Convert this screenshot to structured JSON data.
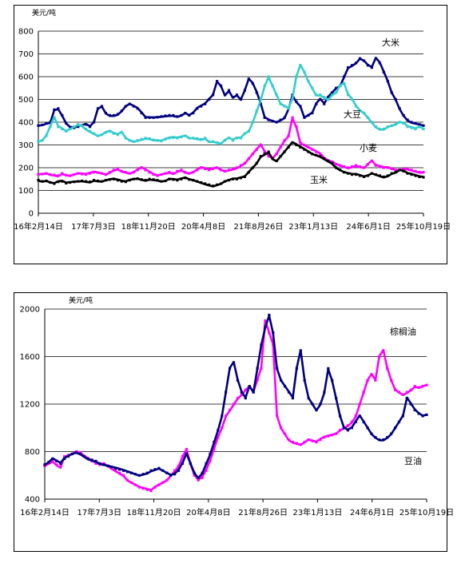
{
  "chart_data": [
    {
      "type": "line",
      "ylabel": "美元/吨",
      "ylim": [
        0,
        800
      ],
      "yticks": [
        0,
        100,
        200,
        300,
        400,
        500,
        600,
        700,
        800
      ],
      "xticks": [
        "16年2月14日",
        "17年7月3日",
        "18年11月20日",
        "20年4月8日",
        "21年8月26日",
        "23年1月13日",
        "24年6月1日",
        "25年10月19日"
      ],
      "grid": true,
      "series": [
        {
          "name": "大米",
          "color": "#000080",
          "values": [
            385,
            388,
            395,
            400,
            455,
            460,
            430,
            395,
            378,
            375,
            380,
            385,
            390,
            380,
            400,
            460,
            470,
            440,
            430,
            430,
            435,
            450,
            470,
            480,
            470,
            460,
            440,
            420,
            420,
            420,
            422,
            425,
            428,
            430,
            430,
            425,
            430,
            440,
            430,
            440,
            460,
            470,
            480,
            500,
            520,
            580,
            560,
            520,
            540,
            510,
            520,
            500,
            540,
            590,
            570,
            530,
            480,
            420,
            410,
            405,
            400,
            410,
            420,
            460,
            520,
            490,
            470,
            420,
            430,
            440,
            480,
            500,
            480,
            510,
            530,
            550,
            560,
            600,
            640,
            650,
            660,
            680,
            670,
            650,
            640,
            680,
            660,
            620,
            580,
            530,
            500,
            460,
            430,
            410,
            400,
            395,
            390,
            385
          ]
        },
        {
          "name": "大豆",
          "color": "#33CCCC",
          "values": [
            315,
            320,
            340,
            380,
            420,
            380,
            370,
            360,
            370,
            380,
            390,
            385,
            370,
            360,
            350,
            340,
            345,
            355,
            360,
            350,
            345,
            355,
            330,
            320,
            315,
            320,
            325,
            330,
            328,
            322,
            320,
            318,
            325,
            330,
            332,
            330,
            335,
            340,
            330,
            330,
            328,
            325,
            330,
            315,
            315,
            310,
            305,
            320,
            330,
            320,
            330,
            330,
            350,
            360,
            400,
            450,
            500,
            560,
            600,
            560,
            520,
            480,
            470,
            460,
            500,
            600,
            650,
            620,
            580,
            550,
            520,
            520,
            510,
            500,
            520,
            530,
            560,
            570,
            520,
            500,
            470,
            450,
            440,
            420,
            400,
            380,
            370,
            370,
            380,
            385,
            390,
            400,
            395,
            380,
            375,
            370,
            380,
            370
          ]
        },
        {
          "name": "小麦",
          "color": "#FF00FF",
          "values": [
            170,
            172,
            175,
            170,
            168,
            165,
            175,
            168,
            165,
            170,
            175,
            172,
            170,
            175,
            180,
            178,
            175,
            170,
            180,
            190,
            195,
            185,
            180,
            175,
            180,
            190,
            200,
            190,
            180,
            170,
            165,
            170,
            175,
            180,
            175,
            185,
            190,
            180,
            175,
            180,
            190,
            200,
            195,
            190,
            195,
            200,
            190,
            185,
            190,
            195,
            200,
            210,
            220,
            240,
            260,
            280,
            300,
            270,
            250,
            240,
            260,
            290,
            320,
            340,
            420,
            380,
            310,
            300,
            290,
            280,
            270,
            260,
            240,
            230,
            225,
            215,
            210,
            205,
            200,
            205,
            210,
            205,
            200,
            215,
            230,
            210,
            205,
            200,
            200,
            195,
            190,
            190,
            195,
            195,
            190,
            185,
            180,
            180
          ]
        },
        {
          "name": "玉米",
          "color": "#000000",
          "values": [
            145,
            140,
            142,
            135,
            130,
            138,
            140,
            132,
            135,
            138,
            140,
            142,
            140,
            138,
            145,
            142,
            140,
            145,
            148,
            150,
            145,
            140,
            138,
            145,
            150,
            152,
            148,
            145,
            150,
            148,
            145,
            140,
            142,
            150,
            148,
            145,
            150,
            155,
            148,
            145,
            140,
            135,
            130,
            125,
            120,
            125,
            130,
            140,
            145,
            150,
            150,
            155,
            160,
            180,
            200,
            220,
            250,
            260,
            270,
            240,
            230,
            250,
            270,
            290,
            310,
            300,
            290,
            280,
            270,
            260,
            255,
            250,
            240,
            230,
            220,
            200,
            190,
            180,
            175,
            170,
            170,
            165,
            160,
            165,
            175,
            170,
            165,
            160,
            165,
            175,
            180,
            190,
            185,
            175,
            170,
            165,
            160,
            158
          ]
        }
      ],
      "annotations": [
        "大米",
        "大豆",
        "小麦",
        "玉米"
      ]
    },
    {
      "type": "line",
      "ylabel": "美元/吨",
      "ylim": [
        400,
        2000
      ],
      "yticks": [
        400,
        800,
        1200,
        1600,
        2000
      ],
      "xticks": [
        "16年2月14日",
        "17年7月3日",
        "18年11月20日",
        "20年4月8日",
        "21年8月26日",
        "23年1月13日",
        "24年6月1日",
        "25年10月19日"
      ],
      "grid": true,
      "series": [
        {
          "name": "棕榈油",
          "color": "#FF00FF",
          "values": [
            680,
            700,
            720,
            690,
            670,
            760,
            770,
            780,
            800,
            790,
            760,
            740,
            720,
            700,
            690,
            700,
            680,
            660,
            640,
            620,
            600,
            560,
            540,
            520,
            500,
            490,
            480,
            470,
            500,
            520,
            540,
            560,
            600,
            640,
            680,
            760,
            820,
            700,
            600,
            560,
            580,
            640,
            720,
            820,
            920,
            1000,
            1100,
            1150,
            1200,
            1250,
            1280,
            1320,
            1350,
            1300,
            1400,
            1500,
            1900,
            1800,
            1700,
            1100,
            1000,
            950,
            900,
            880,
            870,
            860,
            880,
            900,
            890,
            880,
            900,
            920,
            930,
            940,
            950,
            980,
            1000,
            1020,
            1050,
            1100,
            1200,
            1300,
            1400,
            1450,
            1400,
            1600,
            1650,
            1500,
            1400,
            1320,
            1300,
            1280,
            1300,
            1320,
            1350,
            1340,
            1350,
            1360
          ]
        },
        {
          "name": "豆油",
          "color": "#000080",
          "values": [
            690,
            710,
            740,
            720,
            700,
            740,
            760,
            780,
            790,
            780,
            760,
            740,
            730,
            720,
            700,
            690,
            680,
            670,
            660,
            650,
            640,
            630,
            620,
            610,
            600,
            610,
            620,
            640,
            650,
            660,
            640,
            620,
            600,
            610,
            640,
            700,
            780,
            700,
            620,
            580,
            620,
            700,
            780,
            880,
            980,
            1100,
            1300,
            1500,
            1550,
            1400,
            1300,
            1250,
            1350,
            1300,
            1500,
            1700,
            1850,
            1950,
            1800,
            1500,
            1400,
            1350,
            1300,
            1250,
            1500,
            1650,
            1400,
            1250,
            1200,
            1150,
            1200,
            1300,
            1500,
            1400,
            1250,
            1100,
            1000,
            980,
            1000,
            1050,
            1100,
            1050,
            1000,
            950,
            920,
            900,
            900,
            920,
            950,
            1000,
            1050,
            1100,
            1250,
            1200,
            1150,
            1120,
            1100,
            1110
          ]
        }
      ],
      "annotations": [
        "棕榈油",
        "豆油"
      ]
    }
  ]
}
